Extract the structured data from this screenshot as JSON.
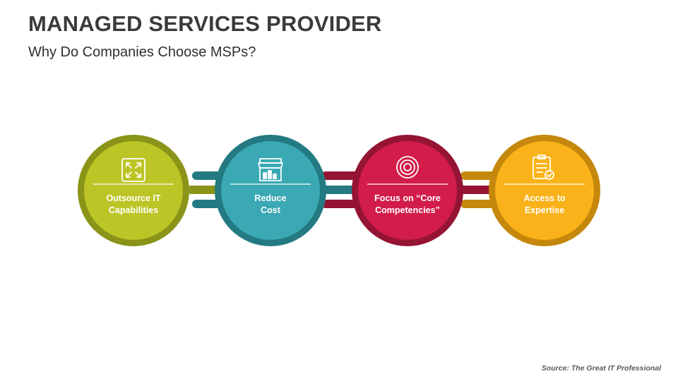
{
  "header": {
    "title": "MANAGED SERVICES PROVIDER",
    "subtitle": "Why Do Companies Choose MSPs?"
  },
  "steps": [
    {
      "line1": "Outsource IT",
      "line2": "Capabilities",
      "icon": "expand-arrows-icon",
      "color": "#bcc526",
      "ring": "#8a9418"
    },
    {
      "line1": "Reduce",
      "line2": "Cost",
      "icon": "storefront-icon",
      "color": "#3aa9b3",
      "ring": "#247a82"
    },
    {
      "line1": "Focus on “Core",
      "line2": "Competencies”",
      "icon": "target-icon",
      "color": "#d21c4a",
      "ring": "#951434"
    },
    {
      "line1": "Access to",
      "line2": "Expertise",
      "icon": "clipboard-check-icon",
      "color": "#f9b219",
      "ring": "#c5880c"
    }
  ],
  "footer": {
    "source": "Source: The Great IT Professional"
  }
}
